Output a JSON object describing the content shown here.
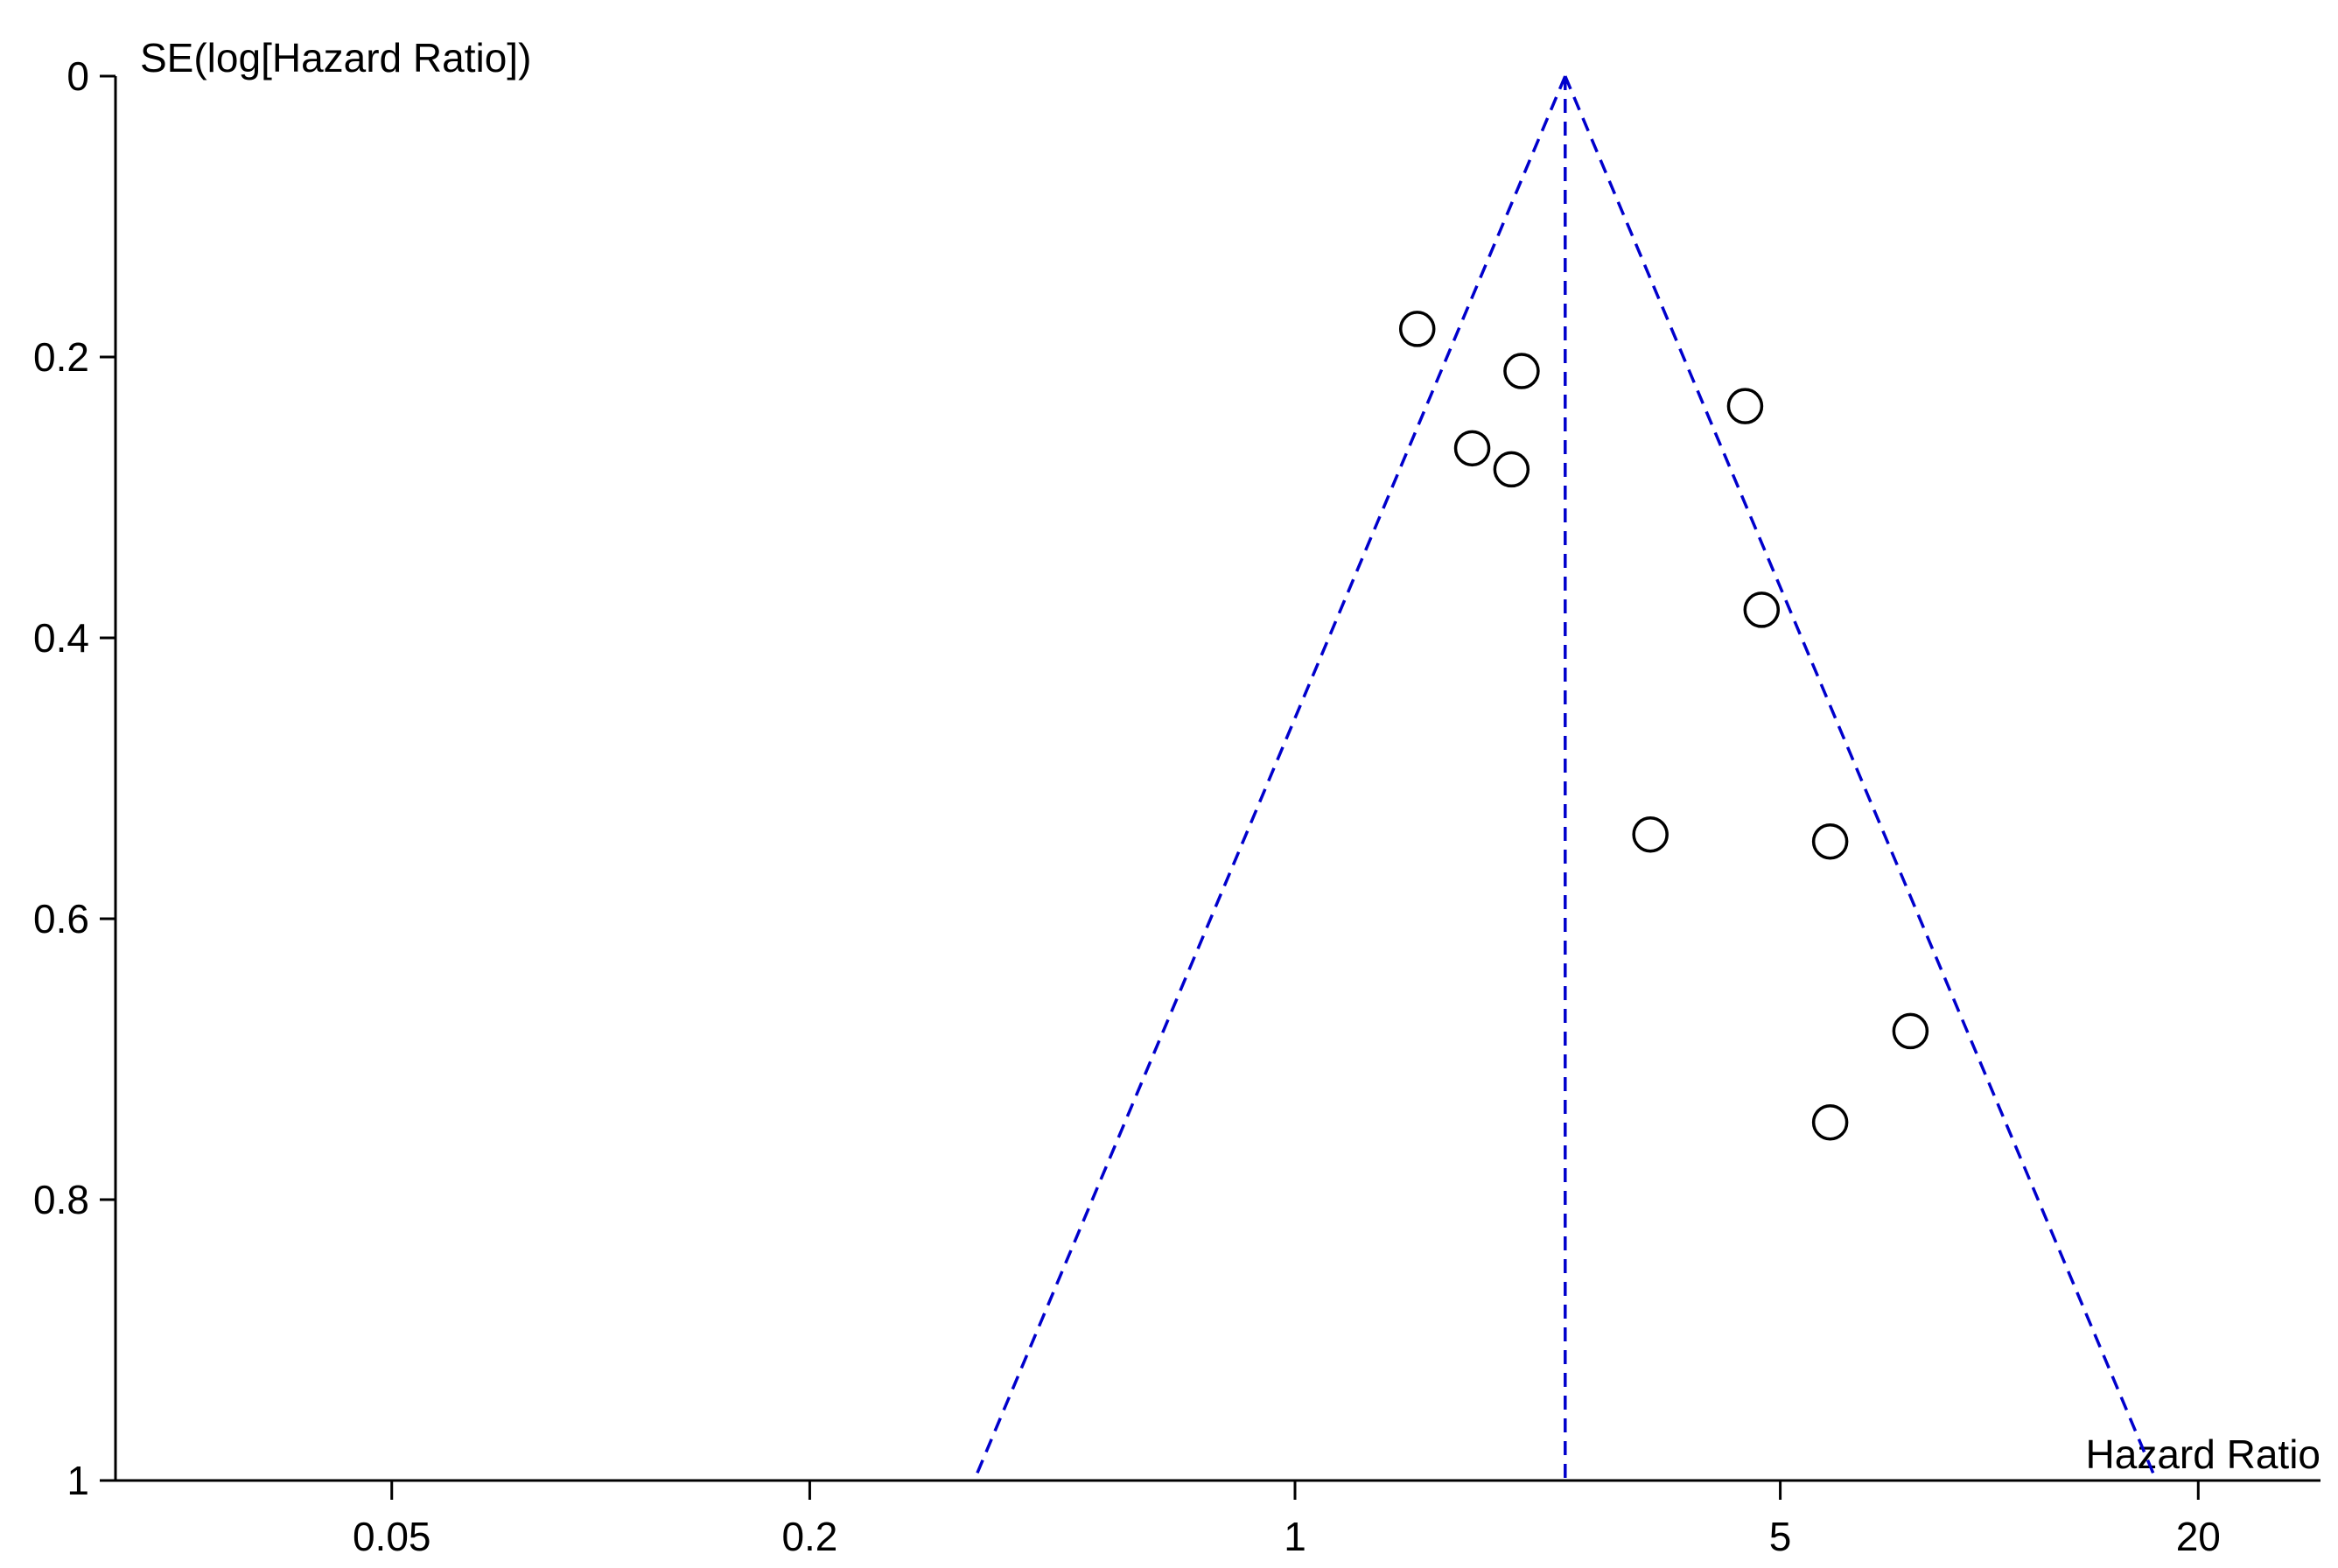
{
  "chart_data": {
    "type": "scatter",
    "title": "",
    "xlabel": "Hazard Ratio",
    "ylabel": "SE(log[Hazard Ratio])",
    "x_scale": "log",
    "y_reversed": true,
    "xlim": [
      0.02,
      30
    ],
    "ylim": [
      0,
      1
    ],
    "x_ticks": [
      {
        "value": 0.05,
        "label": "0.05"
      },
      {
        "value": 0.2,
        "label": "0.2"
      },
      {
        "value": 1,
        "label": "1"
      },
      {
        "value": 5,
        "label": "5"
      },
      {
        "value": 20,
        "label": "20"
      }
    ],
    "y_ticks": [
      {
        "value": 0,
        "label": "0"
      },
      {
        "value": 0.2,
        "label": "0.2"
      },
      {
        "value": 0.4,
        "label": "0.4"
      },
      {
        "value": 0.6,
        "label": "0.6"
      },
      {
        "value": 0.8,
        "label": "0.8"
      },
      {
        "value": 1,
        "label": "1"
      }
    ],
    "pooled_estimate": 2.45,
    "funnel_limits": {
      "se_max": 1,
      "lower_hr_at_se_max": 0.345,
      "upper_hr_at_se_max": 17.4
    },
    "line_color": "#0000cc",
    "marker_color": "#000000",
    "points": [
      {
        "hr": 1.5,
        "se": 0.18
      },
      {
        "hr": 2.12,
        "se": 0.21
      },
      {
        "hr": 4.45,
        "se": 0.235
      },
      {
        "hr": 1.8,
        "se": 0.265
      },
      {
        "hr": 2.05,
        "se": 0.28
      },
      {
        "hr": 4.7,
        "se": 0.38
      },
      {
        "hr": 3.25,
        "se": 0.54
      },
      {
        "hr": 5.9,
        "se": 0.545
      },
      {
        "hr": 7.7,
        "se": 0.68
      },
      {
        "hr": 5.9,
        "se": 0.745
      }
    ]
  }
}
